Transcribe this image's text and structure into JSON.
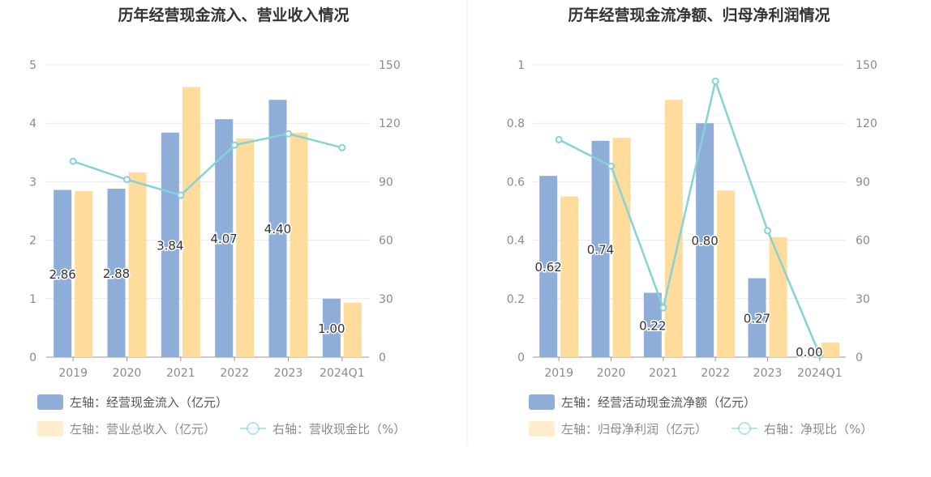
{
  "colors": {
    "bar1": "#8eadd9",
    "bar2": "#ffdb9c",
    "line": "#86d3d6",
    "grid": "#e6e9f0",
    "axis": "#999999",
    "divider": "#ececec"
  },
  "categories": [
    "2019",
    "2020",
    "2021",
    "2022",
    "2023",
    "2024Q1"
  ],
  "chart_data": [
    {
      "type": "bar",
      "title": "历年经营现金流入、营业收入情况",
      "categories": [
        "2019",
        "2020",
        "2021",
        "2022",
        "2023",
        "2024Q1"
      ],
      "left_ticks": [
        "0",
        "1",
        "2",
        "3",
        "4",
        "5"
      ],
      "right_ticks": [
        "0",
        "30",
        "60",
        "90",
        "120",
        "150"
      ],
      "ylim_left": [
        0,
        5
      ],
      "ylim_right": [
        0,
        150
      ],
      "series": [
        {
          "name": "左轴：经营现金流入（亿元）",
          "axis": "left",
          "kind": "bar",
          "values": [
            2.86,
            2.88,
            3.84,
            4.07,
            4.4,
            1.0
          ],
          "labels": [
            "2.86",
            "2.88",
            "3.84",
            "4.07",
            "4.40",
            "1.00"
          ]
        },
        {
          "name": "左轴：营业总收入（亿元）",
          "axis": "left",
          "kind": "bar",
          "values": [
            2.84,
            3.16,
            4.62,
            3.74,
            3.84,
            0.93
          ]
        },
        {
          "name": "右轴：营收现金比（%）",
          "axis": "right",
          "kind": "line",
          "values": [
            100.5,
            91.1,
            83.1,
            108.8,
            114.6,
            107.5
          ]
        }
      ]
    },
    {
      "type": "bar",
      "title": "历年经营现金流净额、归母净利润情况",
      "categories": [
        "2019",
        "2020",
        "2021",
        "2022",
        "2023",
        "2024Q1"
      ],
      "left_ticks": [
        "0",
        "0.2",
        "0.4",
        "0.6",
        "0.8",
        "1"
      ],
      "right_ticks": [
        "0",
        "30",
        "60",
        "90",
        "120",
        "150"
      ],
      "ylim_left": [
        0,
        1
      ],
      "ylim_right": [
        0,
        150
      ],
      "series": [
        {
          "name": "左轴：经营活动现金流净额（亿元）",
          "axis": "left",
          "kind": "bar",
          "values": [
            0.62,
            0.74,
            0.22,
            0.8,
            0.27,
            0.0
          ],
          "labels": [
            "0.62",
            "0.74",
            "0.22",
            "0.80",
            "0.27",
            "0.00"
          ]
        },
        {
          "name": "左轴：归母净利润（亿元）",
          "axis": "left",
          "kind": "bar",
          "values": [
            0.55,
            0.75,
            0.88,
            0.57,
            0.41,
            0.05
          ]
        },
        {
          "name": "右轴：净现比（%）",
          "axis": "right",
          "kind": "line",
          "values": [
            111.6,
            98.0,
            25.3,
            141.6,
            64.9,
            1.1
          ]
        }
      ]
    }
  ]
}
